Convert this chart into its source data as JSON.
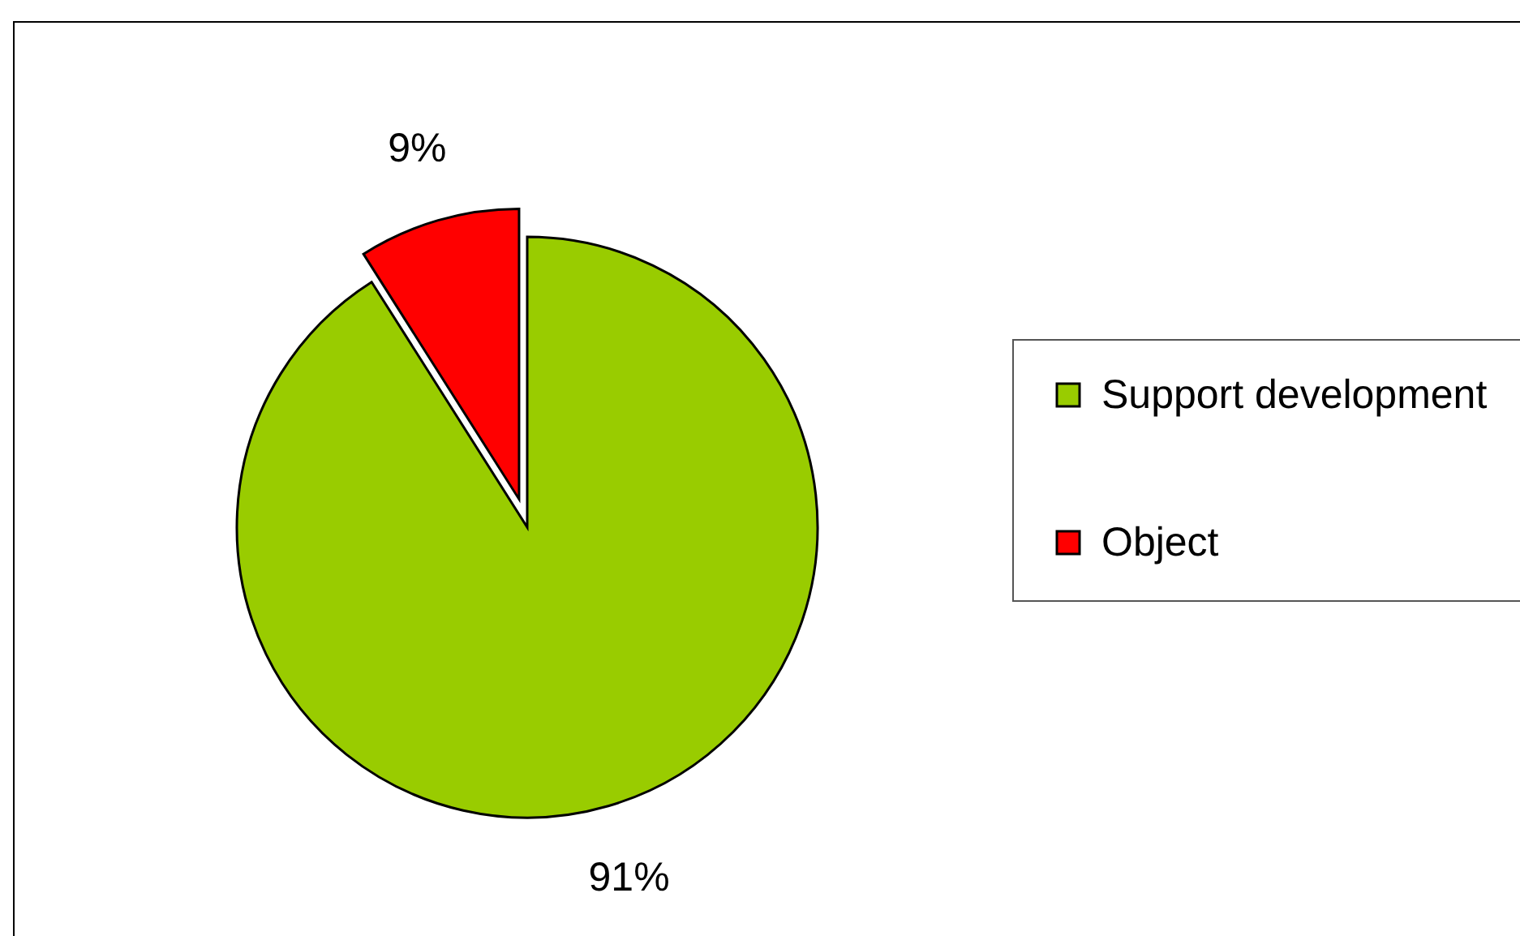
{
  "chart_data": {
    "type": "pie",
    "categories": [
      "Support development",
      "Object"
    ],
    "values": [
      91,
      9
    ],
    "colors": [
      "#99cc00",
      "#ff0000"
    ],
    "value_labels": [
      "91%",
      "9%"
    ],
    "legend": "right"
  }
}
